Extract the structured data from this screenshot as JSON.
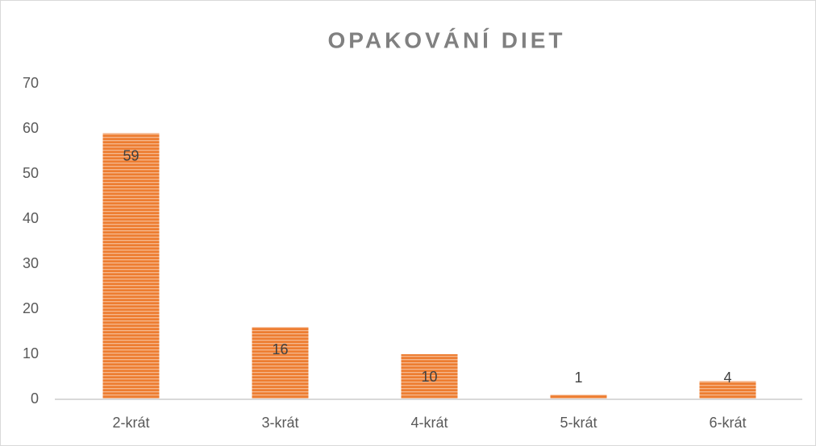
{
  "chart_data": {
    "type": "bar",
    "title": "OPAKOVÁNÍ DIET",
    "categories": [
      "2-krát",
      "3-krát",
      "4-krát",
      "5-krát",
      "6-krát"
    ],
    "values": [
      59,
      16,
      10,
      1,
      4
    ],
    "color": "#ED7D31",
    "ylim": [
      0,
      70
    ],
    "yticks": [
      0,
      10,
      20,
      30,
      40,
      50,
      60,
      70
    ],
    "grid": false
  }
}
